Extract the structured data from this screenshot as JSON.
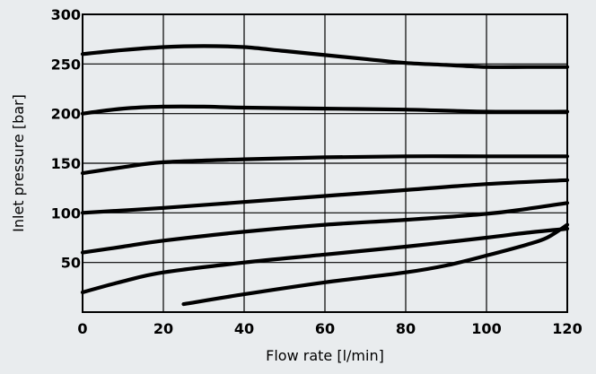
{
  "chart_data": {
    "type": "line",
    "title": "",
    "xlabel": "Flow rate [l/min]",
    "ylabel": "Inlet pressure [bar]",
    "xlim": [
      0,
      120
    ],
    "ylim": [
      0,
      300
    ],
    "x_ticks": [
      0,
      20,
      40,
      60,
      80,
      100,
      120
    ],
    "x_tick_labels": [
      "0",
      "20",
      "40",
      "60",
      "80",
      "100",
      "120"
    ],
    "y_ticks": [
      50,
      100,
      150,
      200,
      250,
      300
    ],
    "y_tick_labels": [
      "50",
      "100",
      "150",
      "200",
      "250",
      "300"
    ],
    "grid": true,
    "legend": "none",
    "series": [
      {
        "x": [
          0,
          10,
          20,
          30,
          40,
          50,
          60,
          70,
          80,
          90,
          100,
          110,
          120
        ],
        "y": [
          260,
          264,
          267,
          268,
          267,
          263,
          259,
          255,
          251,
          249,
          247,
          247,
          247
        ]
      },
      {
        "x": [
          0,
          10,
          20,
          30,
          40,
          60,
          80,
          100,
          120
        ],
        "y": [
          200,
          205,
          207,
          207,
          206,
          205,
          204,
          202,
          202
        ]
      },
      {
        "x": [
          0,
          10,
          20,
          40,
          60,
          80,
          100,
          120
        ],
        "y": [
          140,
          146,
          151,
          154,
          156,
          157,
          157,
          157
        ]
      },
      {
        "x": [
          0,
          20,
          40,
          60,
          80,
          100,
          120
        ],
        "y": [
          100,
          105,
          111,
          117,
          123,
          129,
          133
        ]
      },
      {
        "x": [
          0,
          10,
          20,
          40,
          60,
          80,
          100,
          110,
          120
        ],
        "y": [
          60,
          66,
          72,
          81,
          88,
          93,
          99,
          104,
          110
        ]
      },
      {
        "x": [
          0,
          10,
          20,
          40,
          60,
          80,
          100,
          110,
          120
        ],
        "y": [
          20,
          31,
          40,
          50,
          58,
          66,
          75,
          80,
          84
        ]
      },
      {
        "x": [
          25,
          40,
          60,
          80,
          90,
          100,
          110,
          115,
          120
        ],
        "y": [
          8,
          18,
          30,
          40,
          47,
          57,
          68,
          75,
          88
        ]
      }
    ]
  }
}
